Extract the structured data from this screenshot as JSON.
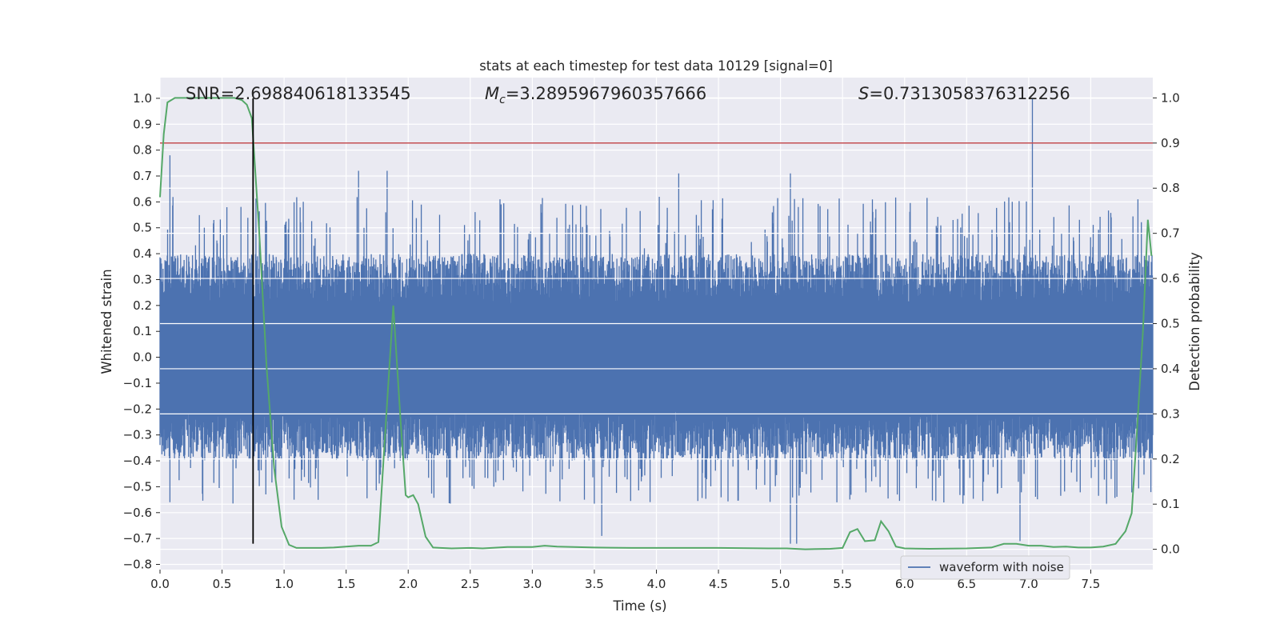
{
  "chart_data": {
    "type": "line",
    "title": "stats at each timestep for test data 10129 [signal=0]",
    "xlabel": "Time (s)",
    "ylabel_left": "Whitened strain",
    "ylabel_right": "Detection probability",
    "xlim": [
      0.0,
      8.0
    ],
    "ylim_left": [
      -0.82,
      1.08
    ],
    "ylim_right": [
      -0.045,
      1.045
    ],
    "x_ticks": [
      "0.0",
      "0.5",
      "1.0",
      "1.5",
      "2.0",
      "2.5",
      "3.0",
      "3.5",
      "4.0",
      "4.5",
      "5.0",
      "5.5",
      "6.0",
      "6.5",
      "7.0",
      "7.5"
    ],
    "y_left_ticks": [
      "−0.8",
      "−0.7",
      "−0.6",
      "−0.5",
      "−0.4",
      "−0.3",
      "−0.2",
      "−0.1",
      "0.0",
      "0.1",
      "0.2",
      "0.3",
      "0.4",
      "0.5",
      "0.6",
      "0.7",
      "0.8",
      "0.9",
      "1.0"
    ],
    "y_right_ticks": [
      "0.0",
      "0.1",
      "0.2",
      "0.3",
      "0.4",
      "0.5",
      "0.6",
      "0.7",
      "0.8",
      "0.9",
      "1.0"
    ],
    "grid": true,
    "background_color": "#eaeaf2",
    "legend": {
      "placement": "lower-right",
      "entries": [
        "waveform with noise"
      ]
    },
    "annotations": {
      "snr": "SNR=2.698840618133545",
      "mc_symbol": "M",
      "mc_sub": "c",
      "mc_value": "=3.2895967960357666",
      "s_symbol": "S",
      "s_value": "=0.7313058376312256"
    },
    "series": [
      {
        "name": "waveform with noise",
        "axis": "left",
        "color": "#4c72b0",
        "description_values": {
          "typical_upper_envelope": 0.38,
          "typical_lower_envelope": -0.38,
          "peaks": [
            {
              "x": 0.08,
              "y": 0.78
            },
            {
              "x": 1.6,
              "y": 0.72
            },
            {
              "x": 1.83,
              "y": 0.72
            },
            {
              "x": 4.18,
              "y": 0.71
            },
            {
              "x": 5.08,
              "y": 0.71
            },
            {
              "x": 7.03,
              "y": 1.0
            },
            {
              "x": 7.88,
              "y": 0.61
            }
          ],
          "troughs": [
            {
              "x": 3.56,
              "y": -0.69
            },
            {
              "x": 5.08,
              "y": -0.72
            },
            {
              "x": 5.13,
              "y": -0.72
            },
            {
              "x": 6.93,
              "y": -0.71
            },
            {
              "x": 0.08,
              "y": -0.56
            }
          ]
        }
      },
      {
        "name": "",
        "axis": "right",
        "color": "#55a868",
        "x": [
          0.0,
          0.03,
          0.06,
          0.12,
          0.2,
          0.3,
          0.4,
          0.5,
          0.6,
          0.66,
          0.7,
          0.74,
          0.8,
          0.86,
          0.92,
          0.98,
          1.04,
          1.1,
          1.2,
          1.3,
          1.4,
          1.5,
          1.6,
          1.7,
          1.76,
          1.82,
          1.88,
          1.94,
          1.98,
          2.0,
          2.04,
          2.08,
          2.14,
          2.2,
          2.26,
          2.35,
          2.5,
          2.6,
          2.8,
          3.0,
          3.1,
          3.2,
          3.5,
          3.8,
          4.0,
          4.5,
          4.9,
          5.05,
          5.2,
          5.4,
          5.5,
          5.56,
          5.62,
          5.68,
          5.76,
          5.81,
          5.87,
          5.93,
          6.0,
          6.2,
          6.5,
          6.7,
          6.8,
          6.9,
          7.0,
          7.1,
          7.2,
          7.3,
          7.4,
          7.5,
          7.6,
          7.7,
          7.78,
          7.83,
          7.87,
          7.92,
          7.96,
          7.99
        ],
        "y": [
          0.78,
          0.92,
          0.99,
          1.0,
          1.0,
          1.0,
          1.0,
          1.0,
          1.0,
          0.995,
          0.985,
          0.955,
          0.7,
          0.4,
          0.18,
          0.05,
          0.01,
          0.003,
          0.003,
          0.003,
          0.004,
          0.006,
          0.008,
          0.008,
          0.016,
          0.28,
          0.54,
          0.28,
          0.12,
          0.115,
          0.12,
          0.1,
          0.028,
          0.004,
          0.003,
          0.002,
          0.003,
          0.002,
          0.005,
          0.005,
          0.008,
          0.006,
          0.004,
          0.003,
          0.003,
          0.003,
          0.002,
          0.002,
          0.0,
          0.001,
          0.003,
          0.038,
          0.045,
          0.018,
          0.02,
          0.062,
          0.04,
          0.006,
          0.002,
          0.001,
          0.002,
          0.004,
          0.012,
          0.012,
          0.008,
          0.008,
          0.005,
          0.006,
          0.004,
          0.004,
          0.006,
          0.012,
          0.04,
          0.08,
          0.25,
          0.48,
          0.73,
          0.65
        ]
      }
    ],
    "threshold_line": {
      "axis": "right",
      "y": 0.9,
      "color": "#c44e52"
    },
    "marker_line": {
      "x": 0.75,
      "y_from_left": -0.72,
      "y_to_left": 1.0,
      "color": "#000000"
    }
  }
}
